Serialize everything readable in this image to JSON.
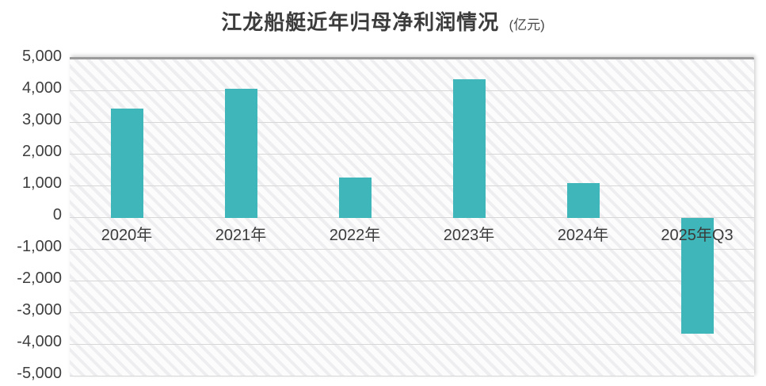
{
  "title": {
    "text": "江龙船艇近年归母净利润情况",
    "unit": "(亿元)"
  },
  "chart_data": {
    "type": "bar",
    "title": "江龙船艇近年归母净利润情况",
    "unit_label": "(亿元)",
    "categories": [
      "2020年",
      "2021年",
      "2022年",
      "2023年",
      "2024年",
      "2025年Q3"
    ],
    "values": [
      3450,
      4080,
      1280,
      4380,
      1100,
      -3650
    ],
    "xlabel": "",
    "ylabel": "",
    "ylim": [
      -5000,
      5000
    ],
    "ytick_step": 1000,
    "yticks": [
      "5,000",
      "4,000",
      "3,000",
      "2,000",
      "1,000",
      "0",
      "-1,000",
      "-2,000",
      "-3,000",
      "-4,000",
      "-5,000"
    ],
    "grid": true,
    "legend": false,
    "bar_color": "#3EB6BA",
    "gridline_color": "#d7d7d7",
    "text_color": "#3f3f3f",
    "plot_top_border_color": "#9b9b9b"
  }
}
